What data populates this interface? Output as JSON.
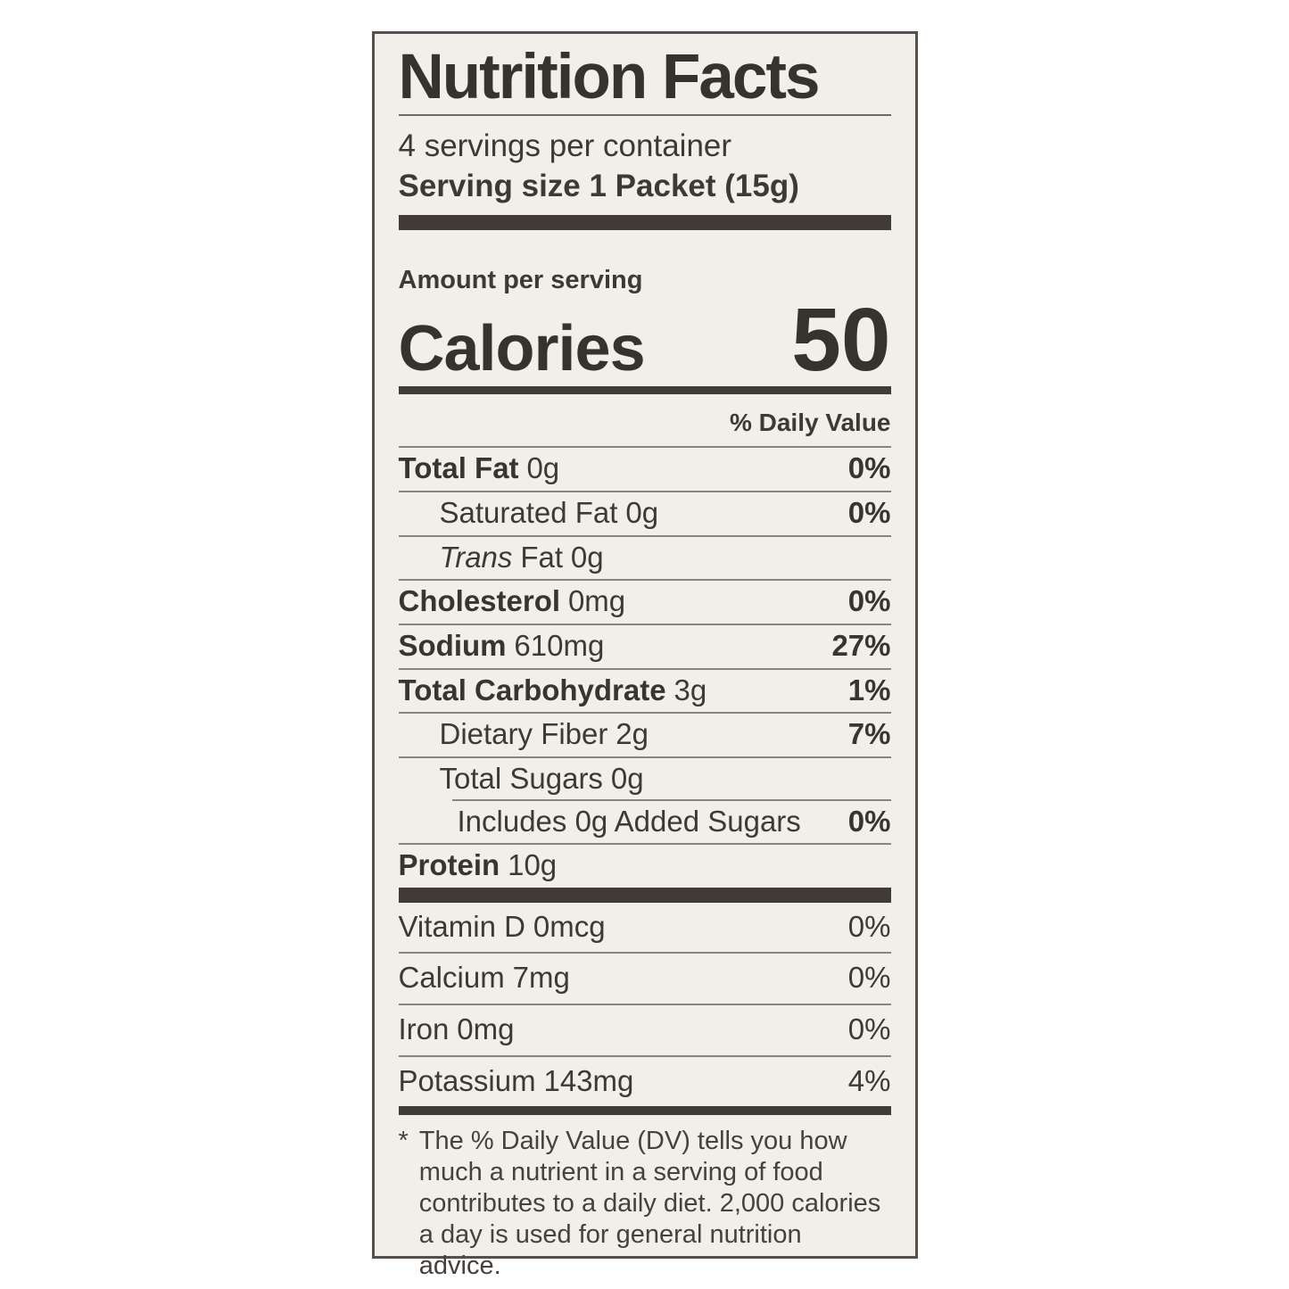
{
  "colors": {
    "ink": "#3b3733",
    "background": "#f2efea",
    "hairline": "#8a847d",
    "page": "#ffffff"
  },
  "label": {
    "title": "Nutrition Facts",
    "servings_per_container": "4 servings per container",
    "serving_size_line": "Serving size 1 Packet (15g)",
    "amount_per_serving": "Amount per serving",
    "calories_label": "Calories",
    "calories_value": "50",
    "daily_value_header": "% Daily Value",
    "rows": [
      {
        "name": "Total Fat",
        "amount": "0g",
        "dv": "0%"
      },
      {
        "name": "Saturated Fat",
        "amount": "0g",
        "dv": "0%"
      },
      {
        "name_italic": "Trans",
        "name": "Fat",
        "amount": "0g",
        "dv": ""
      },
      {
        "name": "Cholesterol",
        "amount": "0mg",
        "dv": "0%"
      },
      {
        "name": "Sodium",
        "amount": "610mg",
        "dv": "27%"
      },
      {
        "name": "Total Carbohydrate",
        "amount": "3g",
        "dv": "1%"
      },
      {
        "name": "Dietary Fiber",
        "amount": "2g",
        "dv": "7%"
      },
      {
        "name": "Total Sugars",
        "amount": "0g",
        "dv": ""
      },
      {
        "name": "Includes 0g Added Sugars",
        "amount": "",
        "dv": "0%"
      },
      {
        "name": "Protein",
        "amount": "10g",
        "dv": ""
      }
    ],
    "micronutrients": [
      {
        "name": "Vitamin D",
        "amount": "0mcg",
        "dv": "0%"
      },
      {
        "name": "Calcium",
        "amount": "7mg",
        "dv": "0%"
      },
      {
        "name": "Iron",
        "amount": "0mg",
        "dv": "0%"
      },
      {
        "name": "Potassium",
        "amount": "143mg",
        "dv": "4%"
      }
    ],
    "footnote_marker": "*",
    "footnote_text": "The % Daily Value (DV) tells you how much a nutrient in a serving of food contributes to a daily diet. 2,000 calories a day is used for general nutrition advice."
  }
}
